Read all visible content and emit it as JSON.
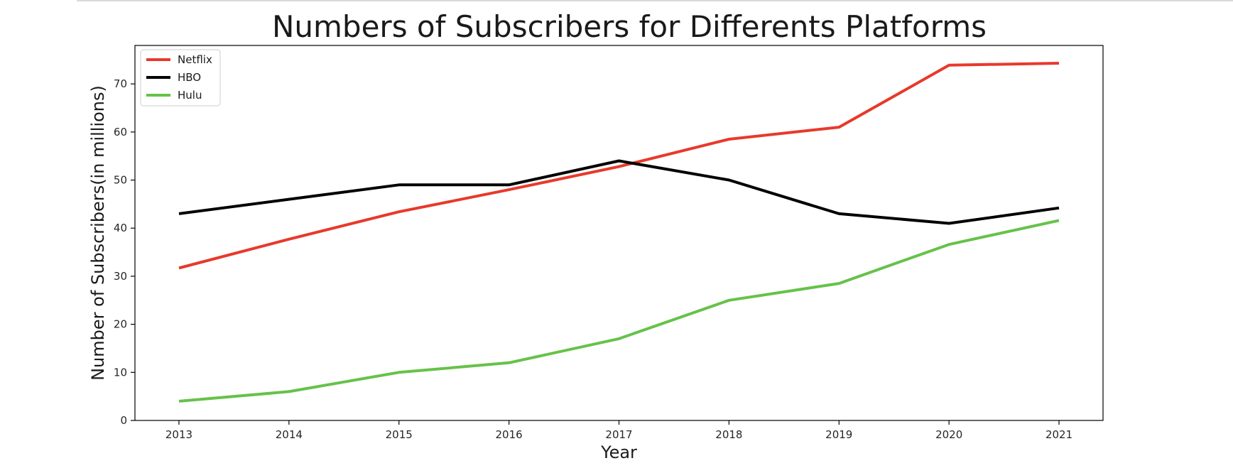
{
  "chart_data": {
    "type": "line",
    "title": "Numbers of Subscribers for Differents Platforms",
    "xlabel": "Year",
    "ylabel": "Number of Subscribers(in millions)",
    "x": [
      2013,
      2014,
      2015,
      2016,
      2017,
      2018,
      2019,
      2020,
      2021
    ],
    "xticks": [
      "2013",
      "2014",
      "2015",
      "2016",
      "2017",
      "2018",
      "2019",
      "2020",
      "2021"
    ],
    "yticks": [
      "0",
      "10",
      "20",
      "30",
      "40",
      "50",
      "60",
      "70"
    ],
    "xlim": [
      2012.6,
      2021.4
    ],
    "ylim": [
      0,
      78
    ],
    "grid": false,
    "legend_position": "top-left",
    "series": [
      {
        "name": "Netflix",
        "color": "#e8392b",
        "values": [
          31.7,
          37.7,
          43.4,
          48.0,
          52.8,
          58.5,
          61.0,
          73.9,
          74.3
        ]
      },
      {
        "name": "HBO",
        "color": "#000000",
        "values": [
          43.0,
          46.0,
          49.0,
          49.0,
          54.0,
          50.0,
          43.0,
          41.0,
          44.2
        ]
      },
      {
        "name": "Hulu",
        "color": "#66c24a",
        "values": [
          4.0,
          6.0,
          10.0,
          12.0,
          17.0,
          25.0,
          28.5,
          36.6,
          41.6
        ]
      }
    ]
  }
}
